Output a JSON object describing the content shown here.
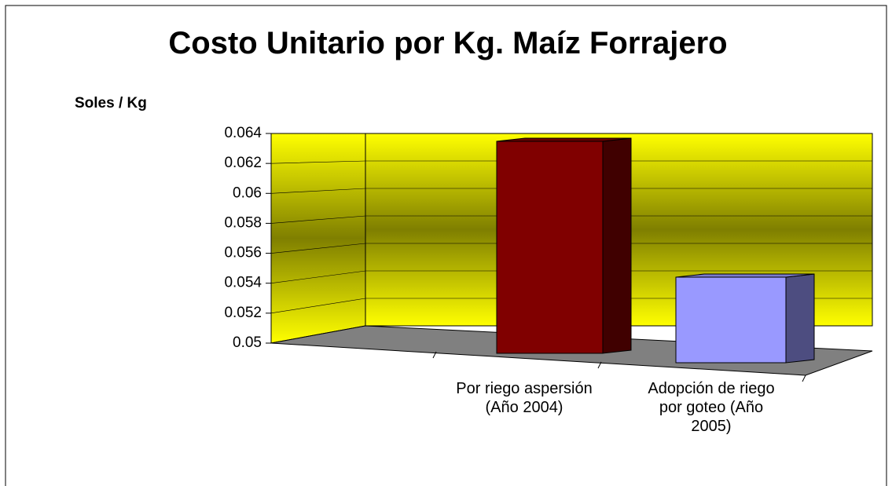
{
  "chart_data": {
    "type": "bar3d",
    "title": "Costo  Unitario por Kg. Maíz Forrajero",
    "y_label": "Soles / Kg",
    "categories": [
      null,
      "Por riego aspersión (Año 2004)",
      "Adopción de riego por goteo (Año 2005)"
    ],
    "values": [
      null,
      0.0635,
      0.0545
    ],
    "colors": [
      null,
      "#800000",
      "#9999ff"
    ],
    "ylim": [
      0.05,
      0.064
    ],
    "yticks": [
      0.05,
      0.052,
      0.054,
      0.056,
      0.058,
      0.06,
      0.062,
      0.064
    ],
    "grid": true
  }
}
